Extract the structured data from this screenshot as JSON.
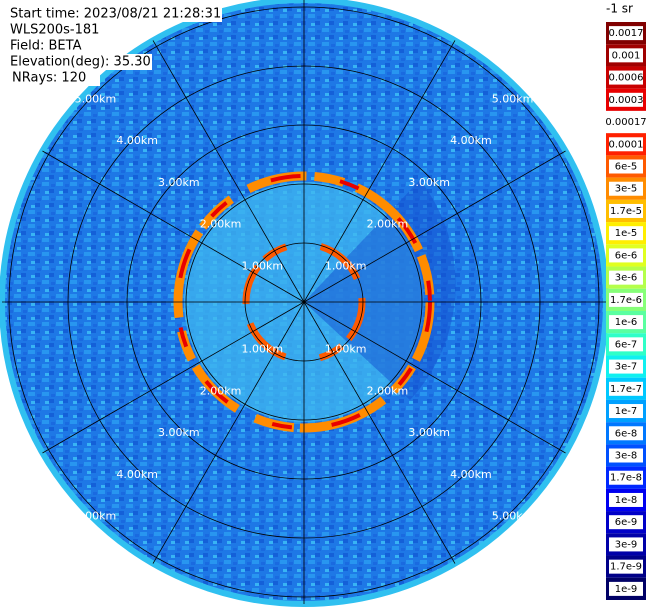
{
  "header": {
    "lines": [
      "Start time: 2023/08/21 21:28:31",
      "WLS200s-181",
      "Field: BETA",
      "Elevation(deg): 35.30",
      "NRays: 120"
    ]
  },
  "range_rings": [
    "1.00km",
    "2.00km",
    "3.00km",
    "4.00km",
    "5.00km"
  ],
  "colorbar": {
    "title": "-1 sr",
    "entries": [
      {
        "label": "0.0017",
        "color": "#800000"
      },
      {
        "label": "0.001",
        "color": "#a00000"
      },
      {
        "label": "0.0006",
        "color": "#c80000"
      },
      {
        "label": "0.0003",
        "color": "#e80000"
      },
      {
        "label": "0.00017",
        "color": "#ffffff"
      },
      {
        "label": "0.0001",
        "color": "#ff2000"
      },
      {
        "label": "6e-5",
        "color": "#ff5a00"
      },
      {
        "label": "3e-5",
        "color": "#ff8c00"
      },
      {
        "label": "1.7e-5",
        "color": "#ffbe00"
      },
      {
        "label": "1e-5",
        "color": "#ffee00"
      },
      {
        "label": "6e-6",
        "color": "#e0ff20"
      },
      {
        "label": "3e-6",
        "color": "#b4ff4a"
      },
      {
        "label": "1.7e-6",
        "color": "#86ff78"
      },
      {
        "label": "1e-6",
        "color": "#5aff a0"
      },
      {
        "label": "6e-7",
        "color": "#30ffc8"
      },
      {
        "label": "3e-7",
        "color": "#10f0f0"
      },
      {
        "label": "1.7e-7",
        "color": "#00c8ff"
      },
      {
        "label": "1e-7",
        "color": "#00a0ff"
      },
      {
        "label": "6e-8",
        "color": "#0078ff"
      },
      {
        "label": "3e-8",
        "color": "#0050ff"
      },
      {
        "label": "1.7e-8",
        "color": "#0028ff"
      },
      {
        "label": "1e-8",
        "color": "#0000f0"
      },
      {
        "label": "6e-9",
        "color": "#0000c8"
      },
      {
        "label": "3e-9",
        "color": "#0000a8"
      },
      {
        "label": "1.7e-9",
        "color": "#000088"
      },
      {
        "label": "1e-9",
        "color": "#000066"
      }
    ]
  }
}
